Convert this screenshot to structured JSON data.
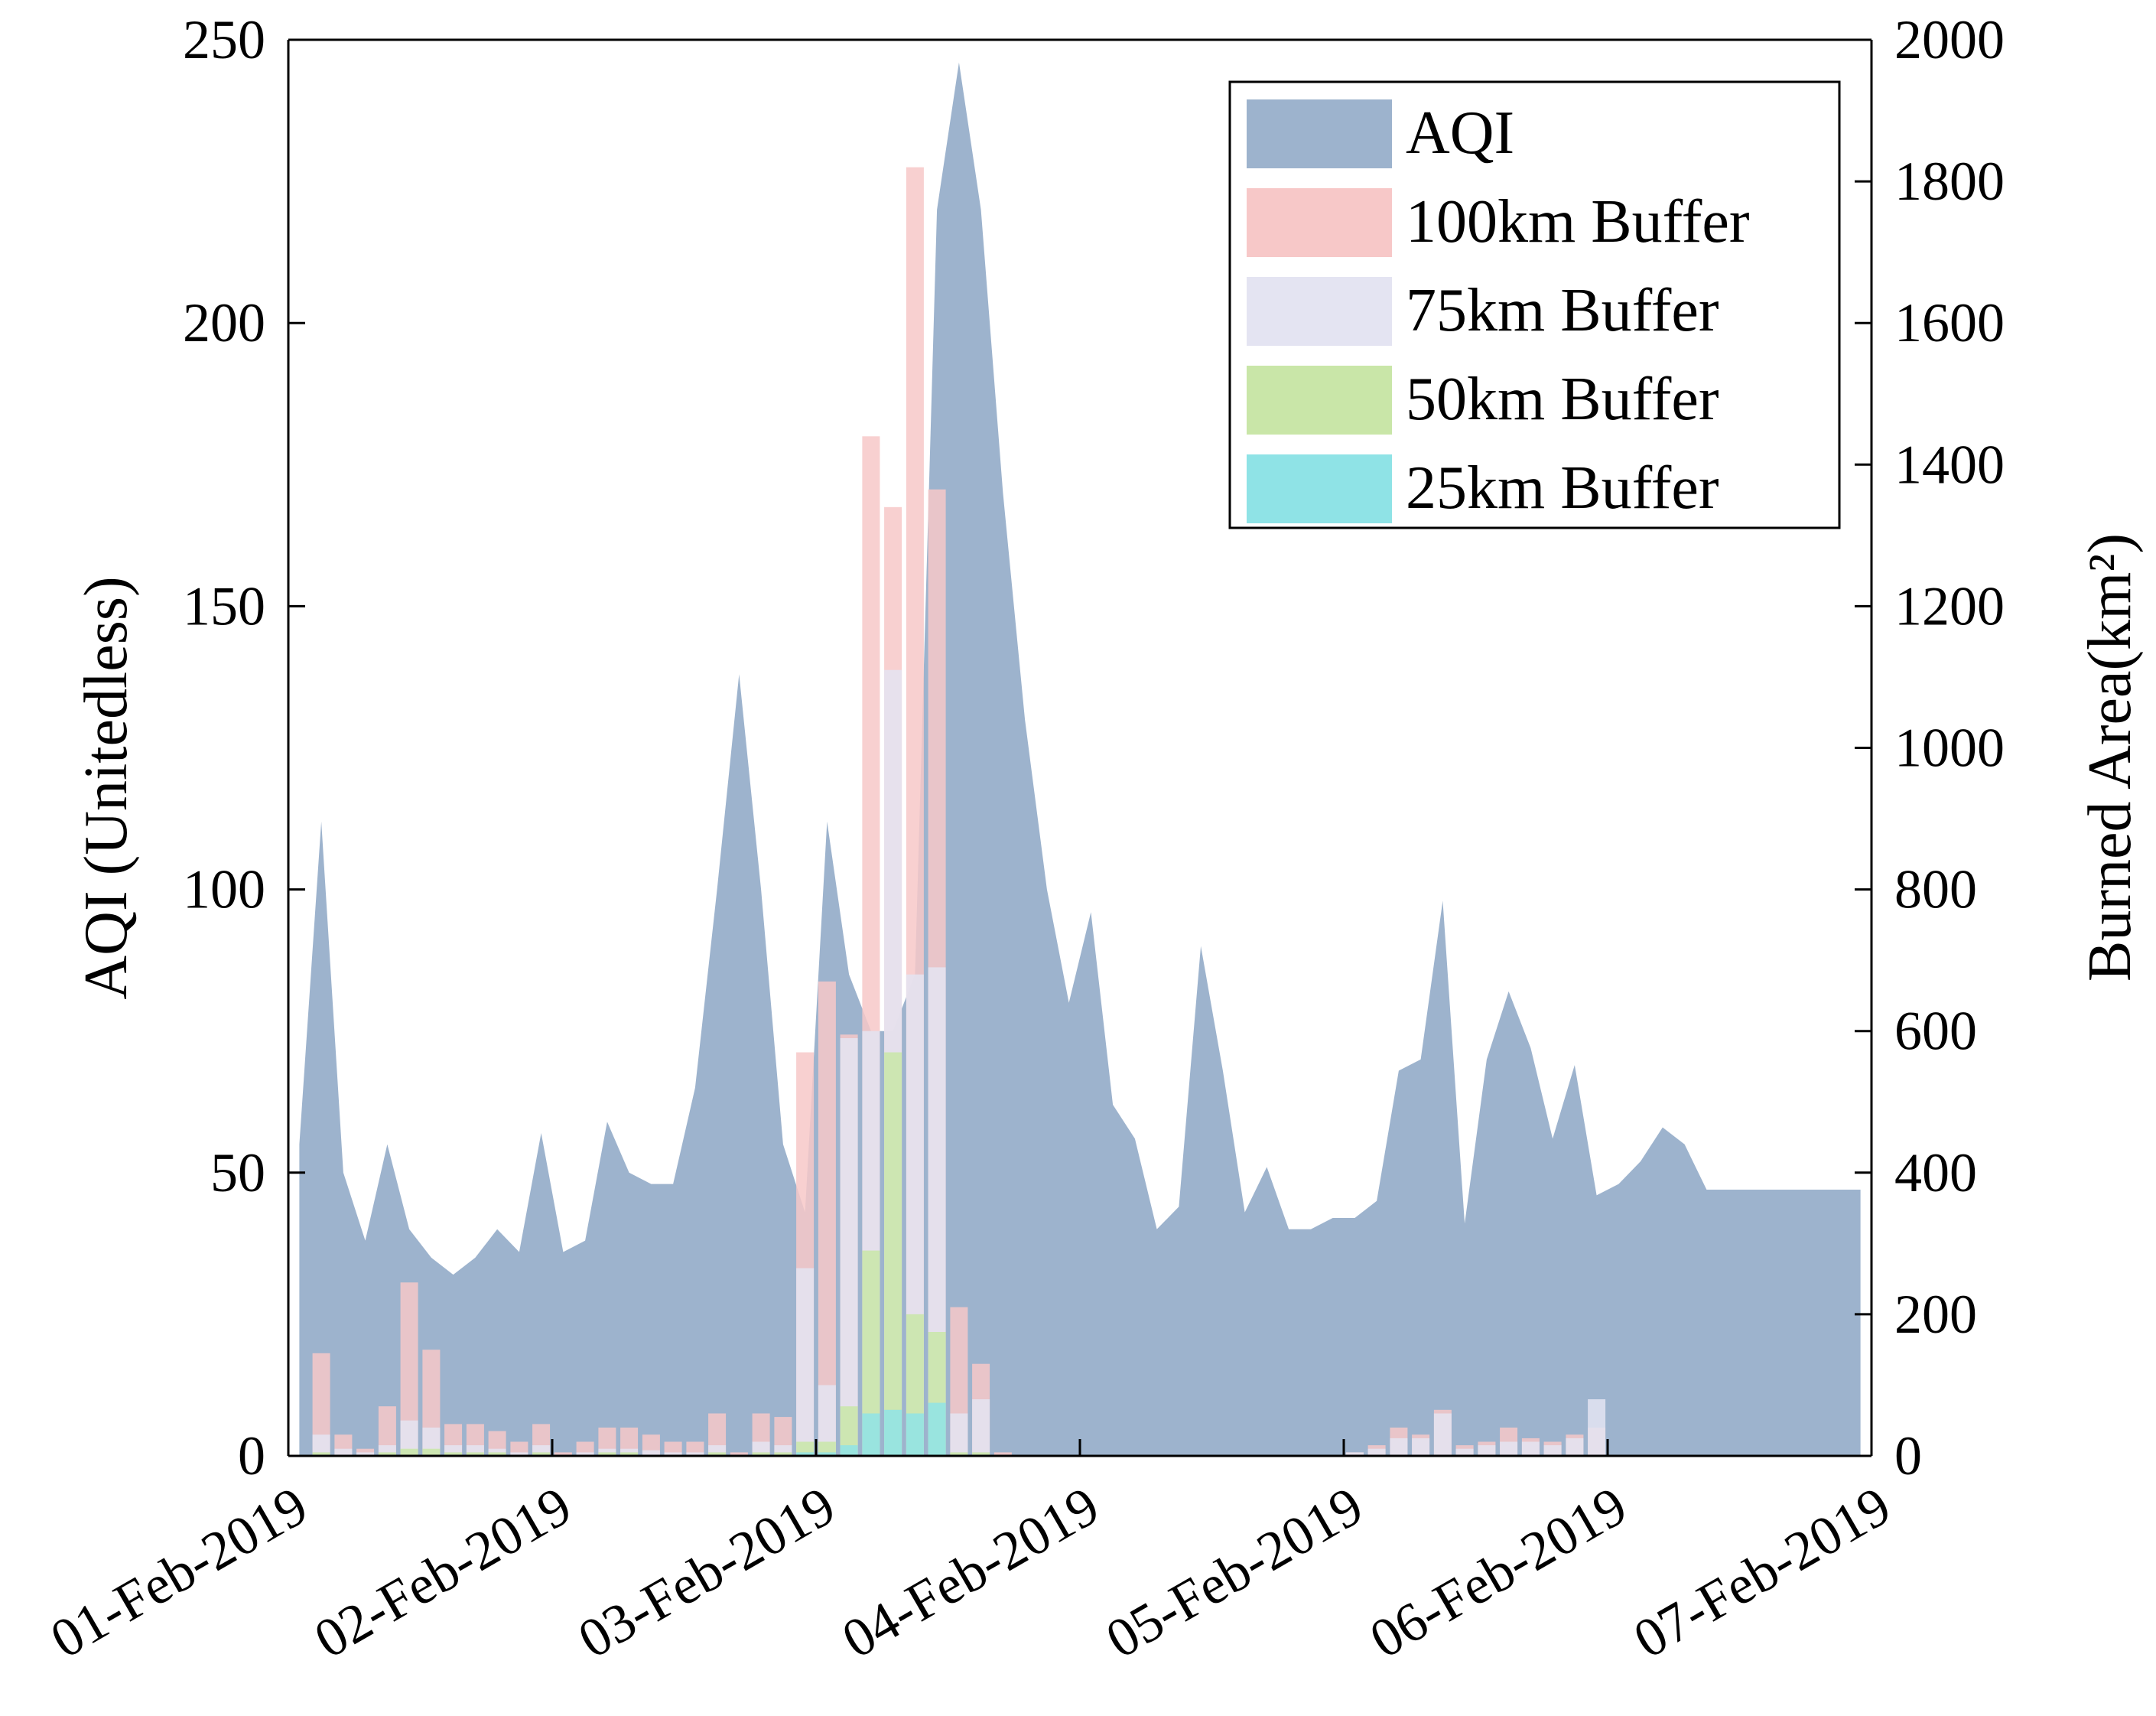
{
  "chart_data": {
    "type": "area",
    "x_start": "01-Feb-2019",
    "x_end": "07-Feb-2019",
    "x_ticks": [
      "01-Feb-2019",
      "02-Feb-2019",
      "03-Feb-2019",
      "04-Feb-2019",
      "05-Feb-2019",
      "06-Feb-2019",
      "07-Feb-2019"
    ],
    "ylabel_left": "AQI (Unitedless)",
    "ylabel_right": "Burned Area(km²)",
    "ylim_left": [
      0,
      250
    ],
    "ylim_right": [
      0,
      2000
    ],
    "yticks_left": [
      0,
      50,
      100,
      150,
      200,
      250
    ],
    "yticks_right": [
      0,
      200,
      400,
      600,
      800,
      1000,
      1200,
      1400,
      1600,
      1800,
      2000
    ],
    "grid": false,
    "legend_placement": "top-right",
    "legend": [
      "AQI",
      "100km Buffer",
      "75km Buffer",
      "50km Buffer",
      "25km Buffer"
    ],
    "colors": {
      "AQI": "#9db3cd",
      "100km Buffer": "#f7c8c8",
      "75km Buffer": "#e4e4f2",
      "50km Buffer": "#c9e6a8",
      "25km Buffer": "#8fe3e6"
    },
    "aqi": {
      "x": [
        "2019-02-01 01:00",
        "2019-02-01 03:00",
        "2019-02-01 05:00",
        "2019-02-01 07:00",
        "2019-02-01 09:00",
        "2019-02-01 11:00",
        "2019-02-01 13:00",
        "2019-02-01 15:00",
        "2019-02-01 17:00",
        "2019-02-01 19:00",
        "2019-02-01 21:00",
        "2019-02-01 23:00",
        "2019-02-02 01:00",
        "2019-02-02 03:00",
        "2019-02-02 05:00",
        "2019-02-02 07:00",
        "2019-02-02 09:00",
        "2019-02-02 11:00",
        "2019-02-02 13:00",
        "2019-02-02 15:00",
        "2019-02-02 17:00",
        "2019-02-02 19:00",
        "2019-02-02 21:00",
        "2019-02-02 23:00",
        "2019-02-03 01:00",
        "2019-02-03 03:00",
        "2019-02-03 05:00",
        "2019-02-03 07:00",
        "2019-02-03 09:00",
        "2019-02-03 11:00",
        "2019-02-03 13:00",
        "2019-02-03 15:00",
        "2019-02-03 17:00",
        "2019-02-03 19:00",
        "2019-02-03 21:00",
        "2019-02-03 23:00",
        "2019-02-04 01:00",
        "2019-02-04 03:00",
        "2019-02-04 05:00",
        "2019-02-04 07:00",
        "2019-02-04 09:00",
        "2019-02-04 11:00",
        "2019-02-04 13:00",
        "2019-02-04 15:00",
        "2019-02-04 17:00",
        "2019-02-04 19:00",
        "2019-02-04 21:00",
        "2019-02-04 23:00",
        "2019-02-05 01:00",
        "2019-02-05 03:00",
        "2019-02-05 05:00",
        "2019-02-05 07:00",
        "2019-02-05 09:00",
        "2019-02-05 11:00",
        "2019-02-05 13:00",
        "2019-02-05 15:00",
        "2019-02-05 17:00",
        "2019-02-05 19:00",
        "2019-02-05 21:00",
        "2019-02-05 23:00",
        "2019-02-06 01:00",
        "2019-02-06 03:00",
        "2019-02-06 05:00",
        "2019-02-06 07:00",
        "2019-02-06 09:00",
        "2019-02-06 11:00",
        "2019-02-06 13:00",
        "2019-02-06 15:00",
        "2019-02-06 17:00",
        "2019-02-06 19:00",
        "2019-02-06 21:00",
        "2019-02-06 23:00"
      ],
      "values": [
        55,
        112,
        50,
        38,
        55,
        40,
        35,
        32,
        35,
        40,
        36,
        57,
        36,
        38,
        59,
        50,
        48,
        48,
        65,
        100,
        138,
        100,
        55,
        43,
        112,
        85,
        75,
        75,
        85,
        220,
        246,
        220,
        170,
        130,
        100,
        80,
        96,
        62,
        56,
        40,
        44,
        90,
        68,
        43,
        51,
        40,
        40,
        42,
        42,
        45,
        68,
        70,
        98,
        41,
        70,
        82,
        72,
        56,
        69,
        46,
        48,
        52,
        58,
        55,
        47,
        47,
        47,
        47,
        47,
        47,
        47,
        47
      ]
    },
    "buffers": {
      "x": [
        "2019-02-01 03:00",
        "2019-02-01 05:00",
        "2019-02-01 07:00",
        "2019-02-01 09:00",
        "2019-02-01 11:00",
        "2019-02-01 13:00",
        "2019-02-01 15:00",
        "2019-02-01 17:00",
        "2019-02-01 19:00",
        "2019-02-01 21:00",
        "2019-02-01 23:00",
        "2019-02-02 01:00",
        "2019-02-02 03:00",
        "2019-02-02 05:00",
        "2019-02-02 07:00",
        "2019-02-02 09:00",
        "2019-02-02 11:00",
        "2019-02-02 13:00",
        "2019-02-02 15:00",
        "2019-02-02 17:00",
        "2019-02-02 19:00",
        "2019-02-02 21:00",
        "2019-02-02 23:00",
        "2019-02-03 01:00",
        "2019-02-03 03:00",
        "2019-02-03 05:00",
        "2019-02-03 07:00",
        "2019-02-03 09:00",
        "2019-02-03 11:00",
        "2019-02-03 13:00",
        "2019-02-03 15:00",
        "2019-02-03 17:00",
        "2019-02-03 19:00",
        "2019-02-03 21:00",
        "2019-02-03 23:00",
        "2019-02-04 01:00",
        "2019-02-04 03:00",
        "2019-02-05 01:00",
        "2019-02-05 03:00",
        "2019-02-05 05:00",
        "2019-02-05 07:00",
        "2019-02-05 09:00",
        "2019-02-05 11:00",
        "2019-02-05 13:00",
        "2019-02-05 15:00",
        "2019-02-05 17:00",
        "2019-02-05 19:00",
        "2019-02-05 21:00",
        "2019-02-05 23:00"
      ],
      "buffer_100km": [
        145,
        30,
        10,
        70,
        245,
        150,
        45,
        45,
        35,
        20,
        45,
        5,
        20,
        40,
        40,
        30,
        20,
        20,
        60,
        5,
        60,
        55,
        570,
        670,
        595,
        1440,
        1340,
        1820,
        1365,
        210,
        130,
        5,
        0,
        0,
        0,
        0,
        0,
        5,
        15,
        40,
        30,
        65,
        15,
        20,
        40,
        25,
        20,
        30,
        40
      ],
      "buffer_75km": [
        30,
        10,
        5,
        15,
        50,
        40,
        15,
        15,
        10,
        5,
        15,
        0,
        5,
        10,
        10,
        8,
        5,
        5,
        15,
        0,
        20,
        15,
        265,
        100,
        590,
        600,
        1110,
        680,
        690,
        60,
        80,
        0,
        0,
        0,
        0,
        0,
        0,
        5,
        10,
        25,
        25,
        60,
        10,
        15,
        20,
        20,
        15,
        25,
        80
      ],
      "buffer_50km": [
        5,
        0,
        0,
        5,
        10,
        10,
        5,
        5,
        5,
        0,
        5,
        0,
        0,
        5,
        5,
        0,
        0,
        0,
        5,
        0,
        5,
        5,
        20,
        20,
        70,
        290,
        570,
        200,
        175,
        5,
        5,
        0,
        0,
        0,
        0,
        0,
        0,
        0,
        0,
        0,
        0,
        0,
        0,
        0,
        0,
        0,
        0,
        0,
        0
      ],
      "buffer_25km": [
        0,
        0,
        0,
        0,
        0,
        0,
        0,
        0,
        0,
        0,
        0,
        0,
        0,
        0,
        0,
        0,
        0,
        0,
        0,
        0,
        0,
        0,
        5,
        5,
        15,
        60,
        65,
        60,
        75,
        0,
        0,
        0,
        0,
        0,
        0,
        0,
        0,
        0,
        0,
        0,
        0,
        0,
        0,
        0,
        0,
        0,
        0,
        0,
        0
      ]
    }
  }
}
